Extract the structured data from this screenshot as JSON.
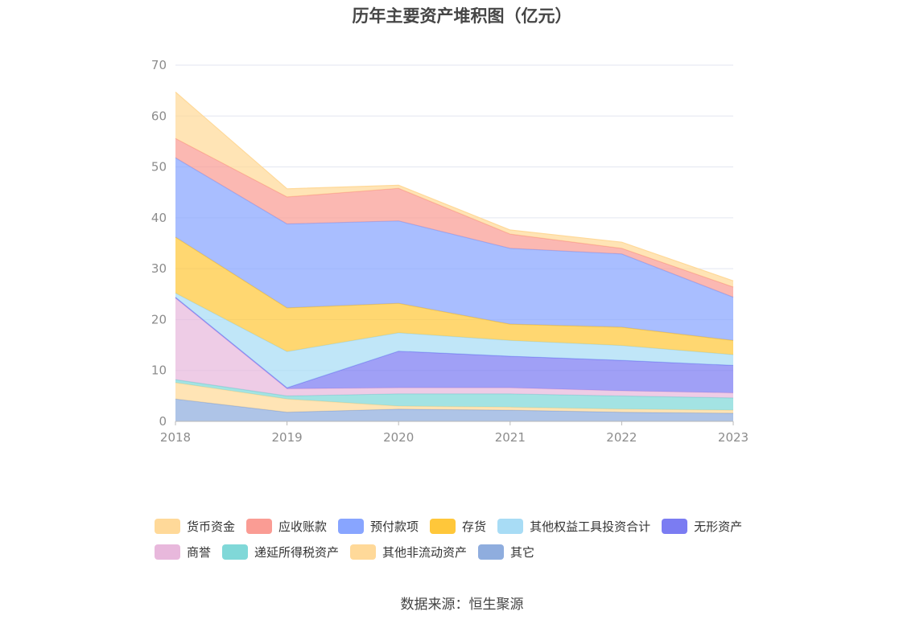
{
  "chart_data": {
    "type": "area",
    "stacked": true,
    "title": "历年主要资产堆积图（亿元）",
    "x": [
      "2018",
      "2019",
      "2020",
      "2021",
      "2022",
      "2023"
    ],
    "ylim": [
      0,
      70
    ],
    "yticks": [
      "0",
      "10",
      "20",
      "30",
      "40",
      "50",
      "60",
      "70"
    ],
    "grid": true,
    "legend_position": "bottom",
    "series": [
      {
        "name": "其它",
        "color": "#8fadde",
        "values": [
          4.4,
          1.8,
          2.4,
          2.2,
          1.8,
          1.6
        ]
      },
      {
        "name": "其他非流动资产",
        "color": "#ffd999",
        "values": [
          3.2,
          2.6,
          0.6,
          0.6,
          0.6,
          0.6
        ]
      },
      {
        "name": "递延所得税资产",
        "color": "#80d8d8",
        "values": [
          0.6,
          0.6,
          2.4,
          2.6,
          2.6,
          2.4
        ]
      },
      {
        "name": "商誉",
        "color": "#e8b8dc",
        "values": [
          16.0,
          1.4,
          1.2,
          1.2,
          1.0,
          1.0
        ]
      },
      {
        "name": "无形资产",
        "color": "#7b7cf2",
        "values": [
          0.2,
          0.2,
          7.2,
          6.2,
          6.0,
          5.4
        ]
      },
      {
        "name": "其他权益工具投资合计",
        "color": "#a8dcf5",
        "values": [
          0.8,
          7.1,
          3.6,
          3.1,
          2.9,
          2.1
        ]
      },
      {
        "name": "存货",
        "color": "#ffc73a",
        "values": [
          11.0,
          8.6,
          5.8,
          3.2,
          3.6,
          2.8
        ]
      },
      {
        "name": "预付款项",
        "color": "#88a5ff",
        "values": [
          15.6,
          16.5,
          16.2,
          14.9,
          14.4,
          8.5
        ]
      },
      {
        "name": "应收账款",
        "color": "#fa9c94",
        "values": [
          3.8,
          5.3,
          6.4,
          2.8,
          1.1,
          2.0
        ]
      },
      {
        "name": "货币资金",
        "color": "#ffd999",
        "values": [
          9.1,
          1.6,
          0.6,
          0.8,
          1.2,
          1.2
        ]
      }
    ]
  },
  "legend": {
    "row1": [
      {
        "label": "货币资金",
        "color": "#ffd999"
      },
      {
        "label": "应收账款",
        "color": "#fa9c94"
      },
      {
        "label": "预付款项",
        "color": "#88a5ff"
      },
      {
        "label": "存货",
        "color": "#ffc73a"
      },
      {
        "label": "其他权益工具投资合计",
        "color": "#a8dcf5"
      },
      {
        "label": "无形资产",
        "color": "#7b7cf2"
      }
    ],
    "row2": [
      {
        "label": "商誉",
        "color": "#e8b8dc"
      },
      {
        "label": "递延所得税资产",
        "color": "#80d8d8"
      },
      {
        "label": "其他非流动资产",
        "color": "#ffd999"
      },
      {
        "label": "其它",
        "color": "#8fadde"
      }
    ]
  },
  "source": "数据来源：恒生聚源"
}
